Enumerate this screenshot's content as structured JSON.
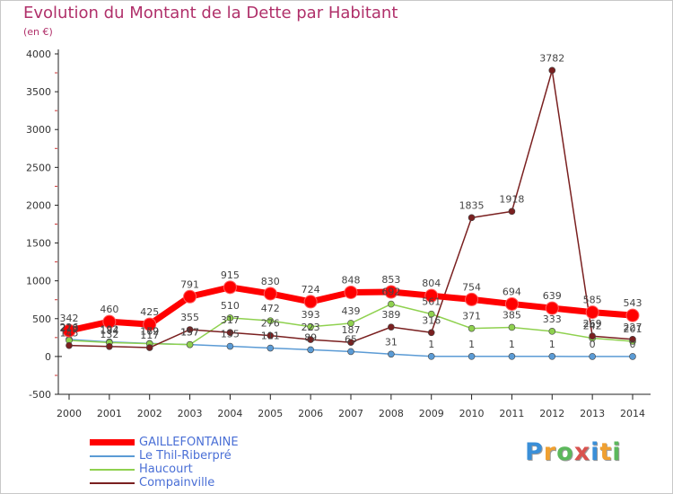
{
  "title": "Evolution du Montant de la Dette par Habitant",
  "unit": "(en €)",
  "logo": {
    "letters": [
      "P",
      "r",
      "o",
      "x",
      "i",
      "t",
      "i"
    ],
    "colors": [
      "#3a8fd8",
      "#f0a030",
      "#5cb85c",
      "#d9534f",
      "#3a8fd8",
      "#f0a030",
      "#5cb85c"
    ]
  },
  "chart_data": {
    "type": "line",
    "x": [
      "2000",
      "2001",
      "2002",
      "2003",
      "2004",
      "2005",
      "2006",
      "2007",
      "2008",
      "2009",
      "2010",
      "2011",
      "2012",
      "2013",
      "2014"
    ],
    "ylim": [
      -500,
      4000
    ],
    "yticks": [
      -500,
      0,
      500,
      1000,
      1500,
      2000,
      2500,
      3000,
      3500,
      4000
    ],
    "grid": false,
    "legend_position": "bottom-left",
    "series": [
      {
        "name": "GAILLEFONTAINE",
        "color": "#ff0000",
        "values": [
          342,
          460,
          425,
          791,
          915,
          830,
          724,
          848,
          853,
          804,
          754,
          694,
          639,
          585,
          543
        ],
        "labels": [
          "342",
          "460",
          "425",
          "791",
          "915",
          "830",
          "724",
          "848",
          "853",
          "804",
          "754",
          "694",
          "639",
          "585",
          "543"
        ]
      },
      {
        "name": "Le Thil-Riberpré",
        "color": "#5b9bd5",
        "values": [
          226,
          192,
          172,
          157,
          135,
          111,
          89,
          65,
          31,
          1,
          1,
          1,
          1,
          0,
          0
        ],
        "labels": [
          "226",
          "192",
          "172",
          "157",
          "135",
          "111",
          "89",
          "65",
          "31",
          "1",
          "1",
          "1",
          "1",
          "0",
          "0"
        ]
      },
      {
        "name": "Haucourt",
        "color": "#8fd14f",
        "values": [
          213,
          184,
          169,
          157,
          510,
          472,
          393,
          439,
          692,
          561,
          371,
          385,
          333,
          242,
          201
        ],
        "labels": [
          "213",
          "184",
          "169",
          "157",
          "510",
          "472",
          "393",
          "439",
          "692",
          "561",
          "371",
          "385",
          "333",
          "242",
          "201"
        ]
      },
      {
        "name": "Compainville",
        "color": "#7a2020",
        "values": [
          145,
          132,
          117,
          355,
          317,
          276,
          223,
          187,
          389,
          316,
          1835,
          1918,
          3782,
          269,
          227
        ],
        "labels": [
          "145",
          "132",
          "117",
          "355",
          "317",
          "276",
          "223",
          "187",
          "389",
          "316",
          "1835",
          "1918",
          "3782",
          "269",
          "227"
        ]
      }
    ]
  }
}
